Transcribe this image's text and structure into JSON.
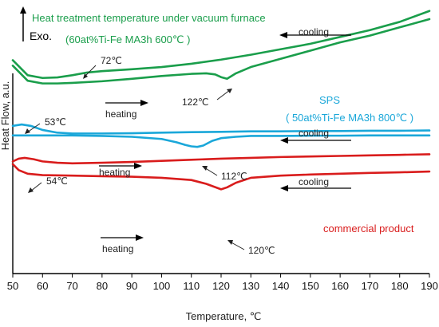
{
  "chart_data": {
    "type": "line",
    "xlabel": "Temperature, ℃",
    "ylabel": "Heat Flow, a.u.",
    "xlim": [
      50,
      190
    ],
    "x_ticks": [
      50,
      60,
      70,
      80,
      90,
      100,
      110,
      120,
      130,
      140,
      150,
      160,
      170,
      180,
      190
    ],
    "exo_label": "Exo.",
    "colors": {
      "green": "#1a9e4b",
      "blue": "#1aa7d9",
      "red": "#d91c1c"
    },
    "groups": [
      {
        "title": "Heat treatment temperature under vacuum furnace",
        "subtitle": "(60at%Ti-Fe MA3h 600℃ )",
        "color": "#1a9e4b",
        "series": [
          {
            "direction": "cooling",
            "x": [
              50,
              55,
              60,
              65,
              70,
              75,
              80,
              90,
              100,
              110,
              120,
              130,
              140,
              150,
              160,
              170,
              180,
              190
            ],
            "y": [
              78.0,
              72.5,
              71.5,
              71.7,
              72.5,
              73.5,
              74.0,
              74.7,
              75.5,
              76.7,
              78.2,
              80.0,
              82.0,
              84.0,
              86.5,
              89.0,
              92.0,
              96.0
            ]
          },
          {
            "direction": "heating",
            "x": [
              50,
              55,
              60,
              65,
              70,
              80,
              90,
              100,
              110,
              115,
              118,
              120,
              122,
              125,
              130,
              140,
              150,
              160,
              170,
              180,
              190
            ],
            "y": [
              76.0,
              70.5,
              69.5,
              69.5,
              69.7,
              70.3,
              71.2,
              72.2,
              73.0,
              73.2,
              72.8,
              71.8,
              71.2,
              73.2,
              75.5,
              78.5,
              81.5,
              84.5,
              87.0,
              90.0,
              93.0
            ]
          }
        ],
        "annotations": [
          "72℃",
          "122℃"
        ],
        "labels": {
          "cooling": "cooling",
          "heating": "heating"
        }
      },
      {
        "title": "SPS",
        "subtitle": "( 50at%Ti-Fe MA3h 800℃ )",
        "color": "#1aa7d9",
        "series": [
          {
            "direction": "cooling",
            "x": [
              50,
              53,
              56,
              60,
              65,
              70,
              80,
              90,
              100,
              110,
              120,
              130,
              140,
              150,
              160,
              170,
              180,
              190
            ],
            "y": [
              54.0,
              54.5,
              54.0,
              52.5,
              51.5,
              51.2,
              51.2,
              51.3,
              51.5,
              51.7,
              51.8,
              52.0,
              52.0,
              52.1,
              52.1,
              52.2,
              52.2,
              52.3
            ]
          },
          {
            "direction": "heating",
            "x": [
              50,
              60,
              70,
              80,
              90,
              100,
              105,
              108,
              110,
              112,
              114,
              117,
              120,
              125,
              130,
              140,
              150,
              160,
              170,
              180,
              190
            ],
            "y": [
              50.5,
              50.5,
              50.5,
              50.3,
              50.0,
              49.2,
              48.0,
              47.0,
              46.5,
              46.3,
              46.8,
              48.5,
              49.5,
              50.0,
              50.3,
              50.3,
              50.4,
              50.4,
              50.5,
              50.5,
              50.5
            ]
          }
        ],
        "annotations": [
          "53℃",
          "112℃"
        ],
        "labels": {
          "cooling": "cooling",
          "heating": "heating"
        }
      },
      {
        "title": "commercial product",
        "subtitle": "",
        "color": "#d91c1c",
        "series": [
          {
            "direction": "cooling",
            "x": [
              50,
              52,
              54,
              57,
              60,
              65,
              70,
              80,
              90,
              100,
              110,
              120,
              130,
              140,
              150,
              160,
              170,
              180,
              190
            ],
            "y": [
              41.0,
              42.0,
              42.3,
              41.8,
              41.0,
              40.5,
              40.3,
              40.5,
              40.8,
              41.2,
              41.6,
              42.0,
              42.3,
              42.6,
              42.8,
              43.0,
              43.2,
              43.4,
              43.6
            ]
          },
          {
            "direction": "heating",
            "x": [
              50,
              52,
              55,
              60,
              70,
              80,
              90,
              100,
              110,
              115,
              118,
              120,
              122,
              125,
              130,
              140,
              150,
              160,
              170,
              180,
              190
            ],
            "y": [
              40.0,
              37.8,
              36.5,
              36.0,
              35.8,
              35.6,
              35.4,
              35.0,
              34.2,
              32.8,
              31.6,
              30.8,
              31.5,
              33.2,
              35.0,
              35.8,
              36.2,
              36.5,
              36.8,
              37.0,
              37.3
            ]
          }
        ],
        "annotations": [
          "54℃",
          "120℃"
        ],
        "labels": {
          "cooling": "cooling",
          "heating": "heating"
        }
      }
    ]
  }
}
